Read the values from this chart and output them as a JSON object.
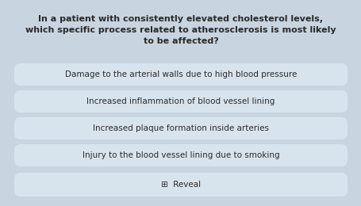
{
  "title_line1": "In a patient with consistently elevated cholesterol levels,",
  "title_line2": "which specific process related to atherosclerosis is most likely",
  "title_line3": "to be affected?",
  "options": [
    "Damage to the arterial walls due to high blood pressure",
    "Increased inflammation of blood vessel lining",
    "Increased plaque formation inside arteries",
    "Injury to the blood vessel lining due to smoking"
  ],
  "reveal_text": "⊞  Reveal",
  "bg_color": "#c8d5e0",
  "card_color": "#d8e4ed",
  "title_color": "#2a2a2a",
  "option_color": "#2a2a2a",
  "reveal_color": "#2a2a2a",
  "title_fontsize": 8.0,
  "option_fontsize": 7.5,
  "reveal_fontsize": 7.5
}
